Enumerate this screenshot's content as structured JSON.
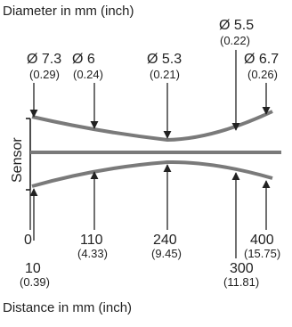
{
  "titles": {
    "top": "Diameter in mm (inch)",
    "bottom": "Distance in mm (inch)"
  },
  "side_label": "Sensor",
  "diameters": [
    {
      "main": "Ø 7.3",
      "sub": "(0.29)"
    },
    {
      "main": "Ø 6",
      "sub": "(0.24)"
    },
    {
      "main": "Ø 5.3",
      "sub": "(0.21)"
    },
    {
      "main": "Ø 5.5",
      "sub": "(0.22)"
    },
    {
      "main": "Ø 6.7",
      "sub": "(0.26)"
    }
  ],
  "distances": [
    {
      "main": "0",
      "sub": ""
    },
    {
      "main": "10",
      "sub": "(0.39)"
    },
    {
      "main": "110",
      "sub": "(4.33)"
    },
    {
      "main": "240",
      "sub": "(9.45)"
    },
    {
      "main": "300",
      "sub": "(11.81)"
    },
    {
      "main": "400",
      "sub": "(15.75)"
    }
  ],
  "colors": {
    "beam": "#7a7a7a",
    "lines": "#222222"
  }
}
